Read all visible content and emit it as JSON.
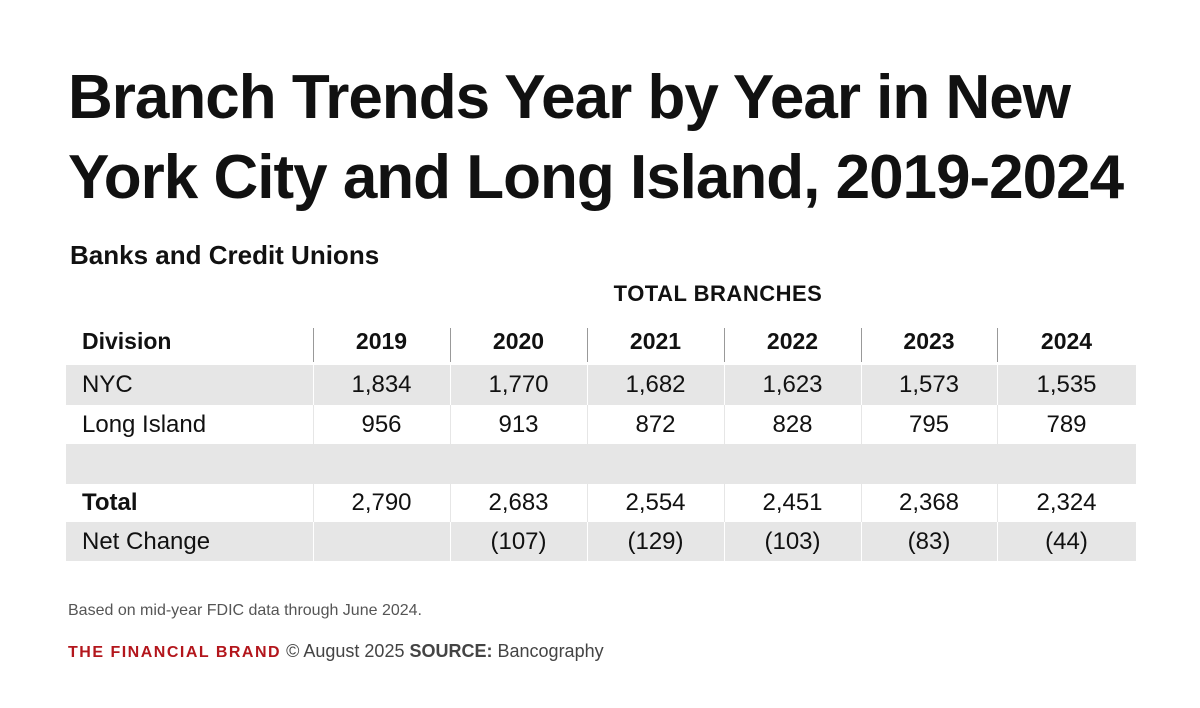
{
  "header": {
    "title": "Branch Trends Year by Year in New York City and Long Island, 2019-2024",
    "subtitle": "Banks and Credit Unions"
  },
  "table": {
    "group_heading": "TOTAL BRANCHES",
    "columns": [
      "Division",
      "2019",
      "2020",
      "2021",
      "2022",
      "2023",
      "2024"
    ],
    "rows": [
      {
        "label": "NYC",
        "values": [
          "1,834",
          "1,770",
          "1,682",
          "1,623",
          "1,573",
          "1,535"
        ]
      },
      {
        "label": "Long Island",
        "values": [
          "956",
          "913",
          "872",
          "828",
          "795",
          "789"
        ]
      },
      {
        "label": "Total",
        "values": [
          "2,790",
          "2,683",
          "2,554",
          "2,451",
          "2,368",
          "2,324"
        ]
      },
      {
        "label": "Net Change",
        "values": [
          null,
          "(107)",
          "(129)",
          "(103)",
          "(83)",
          "(44)"
        ]
      }
    ]
  },
  "footnote": "Based on mid-year FDIC data through June 2024.",
  "footer": {
    "brand": "THE FINANCIAL BRAND",
    "copyright": "© August 2025",
    "source_label": "SOURCE:",
    "source": "Bancography"
  }
}
